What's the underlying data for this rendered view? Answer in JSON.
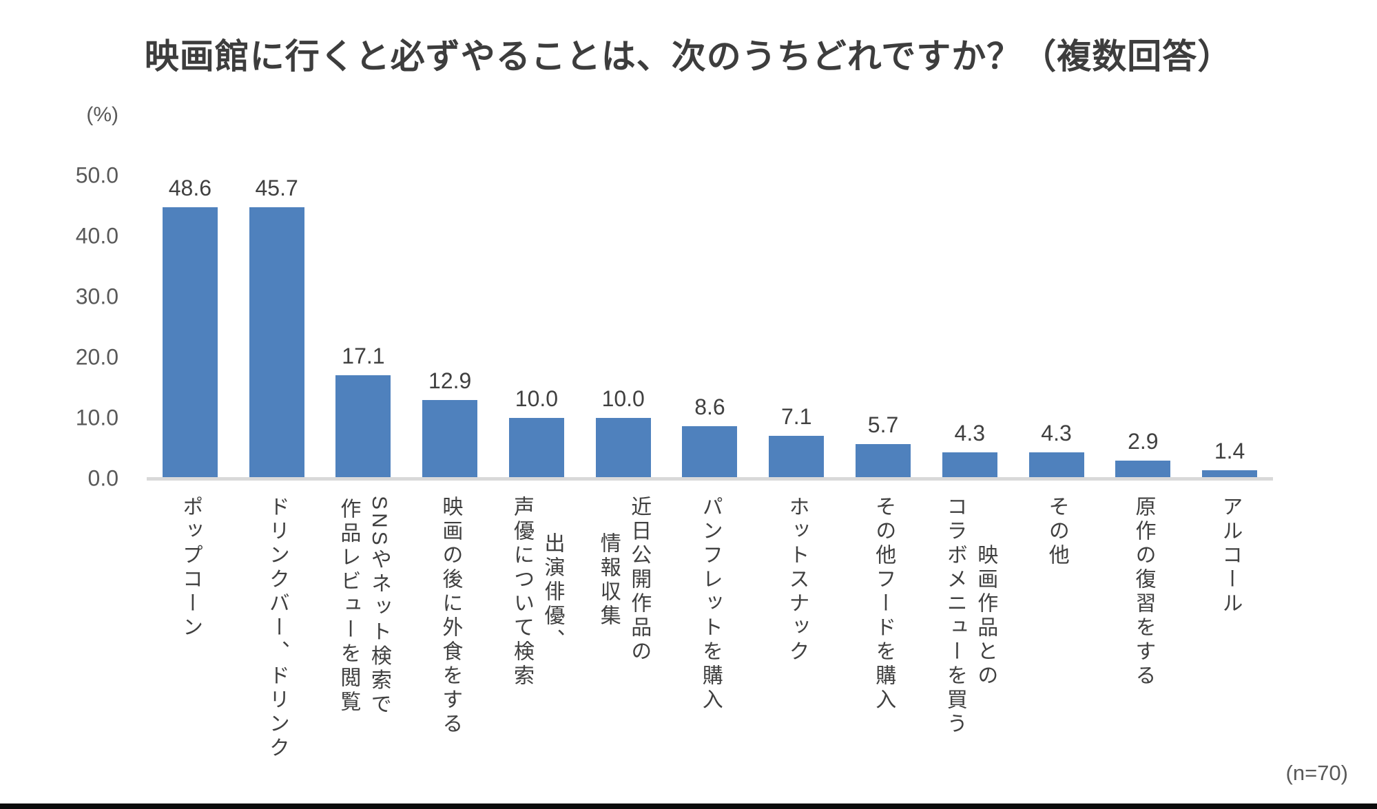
{
  "chart_data": {
    "type": "bar",
    "title": "映画館に行くと必ずやることは、次のうちどれですか？（複数回答）",
    "unit_label": "(%)",
    "sample_note": "(n=70)",
    "ylim": [
      0,
      50
    ],
    "grid": false,
    "legend": false,
    "yticks": [
      {
        "label": "50.0",
        "value": 50
      },
      {
        "label": "40.0",
        "value": 40
      },
      {
        "label": "30.0",
        "value": 30
      },
      {
        "label": "20.0",
        "value": 20
      },
      {
        "label": "10.0",
        "value": 10
      },
      {
        "label": "0.0",
        "value": 0
      }
    ],
    "categories": [
      "ポップコーン",
      "ドリンクバー、ドリンク",
      "SNSやネット検索で作品レビューを閲覧",
      "映画の後に外食をする",
      "出演俳優、声優について検索",
      "近日公開作品の情報収集",
      "パンフレットを購入",
      "ホットスナック",
      "その他フードを購入",
      "映画作品とのコラボメニューを買う",
      "その他",
      "原作の復習をする",
      "アルコール"
    ],
    "category_lines": [
      [
        "ポップコーン"
      ],
      [
        "ドリンクバー、ドリンク"
      ],
      [
        "SNSやネット検索で",
        "作品レビューを閲覧"
      ],
      [
        "映画の後に外食をする"
      ],
      [
        "出演俳優、",
        "声優について検索"
      ],
      [
        "近日公開作品の",
        "情報収集"
      ],
      [
        "パンフレットを購入"
      ],
      [
        "ホットスナック"
      ],
      [
        "その他フードを購入"
      ],
      [
        "映画作品との",
        "コラボメニューを買う"
      ],
      [
        "その他"
      ],
      [
        "原作の復習をする"
      ],
      [
        "アルコール"
      ]
    ],
    "values": [
      48.6,
      45.7,
      17.1,
      12.9,
      10.0,
      10.0,
      8.6,
      7.1,
      5.7,
      4.3,
      4.3,
      2.9,
      1.4
    ],
    "value_labels": [
      "48.6",
      "45.7",
      "17.1",
      "12.9",
      "10.0",
      "10.0",
      "8.6",
      "7.1",
      "5.7",
      "4.3",
      "4.3",
      "2.9",
      "1.4"
    ],
    "colors": {
      "bar": "#4f81bd",
      "axis_line": "#d9d9d9",
      "value_text": "#404040",
      "tick_text": "#595959",
      "title_text": "#3d3d3d",
      "bottom_border": "#0b0b0b"
    }
  }
}
